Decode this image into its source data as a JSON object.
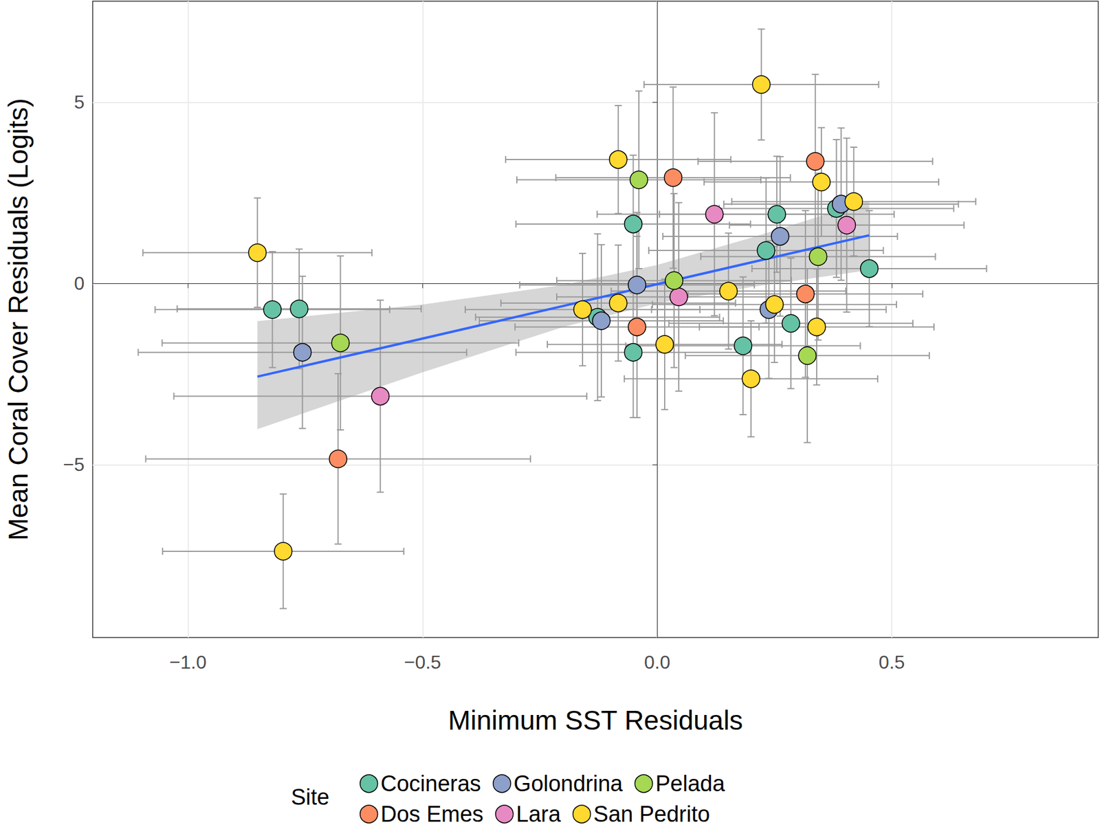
{
  "chart_data": {
    "type": "scatter",
    "x_label": "Minimum SST Residuals",
    "y_label": "Mean Coral Cover Residuals (Logits)",
    "legend_title": "Site",
    "legend": "bottom",
    "grid": true,
    "xlim": [
      -1.203,
      0.94
    ],
    "ylim": [
      -9.77,
      7.79
    ],
    "xticks": [
      {
        "value": -1,
        "label": "−1.0"
      },
      {
        "value": -0.5,
        "label": "−0.5"
      },
      {
        "value": 0,
        "label": "0.0"
      },
      {
        "value": 0.5,
        "label": "0.5"
      }
    ],
    "yticks": [
      {
        "value": -5,
        "label": "−5"
      },
      0,
      5
    ],
    "series": [
      {
        "name": "Cocineras",
        "color": "#66c2a5",
        "x": [
          -0.82,
          -0.763,
          -0.051,
          -0.051,
          -0.127,
          0.232,
          0.255,
          0.285,
          0.183,
          0.382,
          0.452
        ],
        "values": [
          -0.72,
          -0.7,
          1.64,
          -1.9,
          -0.93,
          0.91,
          1.91,
          -1.1,
          -1.72,
          2.07,
          0.41
        ],
        "x_err": [
          0.25,
          0.26,
          0.25,
          0.25,
          0.26,
          0.25,
          0.25,
          0.26,
          0.25,
          0.25,
          0.25
        ],
        "y_err": [
          1.6,
          1.65,
          1.9,
          1.8,
          2.3,
          2.0,
          1.6,
          1.8,
          1.9,
          1.9,
          1.6
        ]
      },
      {
        "name": "Dos Emes",
        "color": "#fc8d62",
        "x": [
          -0.68,
          0.034,
          -0.043,
          0.337,
          0.316
        ],
        "values": [
          -4.84,
          2.92,
          -1.2,
          3.37,
          -0.29
        ],
        "x_err": [
          0.41,
          0.25,
          0.26,
          0.25,
          0.25
        ],
        "y_err": [
          2.35,
          2.5,
          2.5,
          2.4,
          2.3
        ]
      },
      {
        "name": "Golondrina",
        "color": "#8da0cb",
        "x": [
          -0.756,
          -0.119,
          -0.043,
          0.262,
          0.238,
          0.392
        ],
        "values": [
          -1.9,
          -1.03,
          -0.04,
          1.3,
          -0.72,
          2.19
        ],
        "x_err": [
          0.35,
          0.26,
          0.25,
          0.25,
          0.25,
          0.25
        ],
        "y_err": [
          2.1,
          2.1,
          2.0,
          2.2,
          1.9,
          2.1
        ]
      },
      {
        "name": "Lara",
        "color": "#e78ac3",
        "x": [
          -0.59,
          0.122,
          0.046,
          0.404
        ],
        "values": [
          -3.11,
          1.91,
          -0.37,
          1.61
        ],
        "x_err": [
          0.44,
          0.25,
          0.26,
          0.25
        ],
        "y_err": [
          2.65,
          2.8,
          2.6,
          2.4
        ]
      },
      {
        "name": "Pelada",
        "color": "#a6d854",
        "x": [
          -0.675,
          -0.039,
          0.036,
          0.343,
          0.32
        ],
        "values": [
          -1.64,
          2.86,
          0.08,
          0.74,
          -1.99
        ],
        "x_err": [
          0.38,
          0.26,
          0.25,
          0.25,
          0.26
        ],
        "y_err": [
          2.4,
          2.45,
          2.4,
          2.3,
          2.4
        ]
      },
      {
        "name": "San Pedrito",
        "color": "#ffd92f",
        "x": [
          -0.852,
          -0.797,
          -0.083,
          0.222,
          0.35,
          0.419,
          -0.159,
          -0.083,
          0.016,
          0.152,
          0.2,
          0.25,
          0.34
        ],
        "values": [
          0.85,
          -7.39,
          3.42,
          5.49,
          2.8,
          2.26,
          -0.72,
          -0.54,
          -1.68,
          -0.21,
          -2.63,
          -0.58,
          -1.2
        ],
        "x_err": [
          0.244,
          0.257,
          0.24,
          0.25,
          0.25,
          0.26,
          0.25,
          0.25,
          0.25,
          0.25,
          0.27,
          0.26,
          0.25
        ],
        "y_err": [
          1.51,
          1.58,
          1.49,
          1.53,
          1.5,
          1.5,
          1.55,
          1.6,
          1.8,
          1.6,
          1.6,
          1.6,
          1.6
        ]
      }
    ],
    "fit": {
      "color": "#3366ff",
      "x": [
        -0.852,
        -0.5,
        -0.2,
        0,
        0.2,
        0.452
      ],
      "values": [
        -2.57,
        -1.52,
        -0.62,
        -0.02,
        0.58,
        1.33
      ],
      "lower": [
        -4.02,
        -2.45,
        -1.2,
        -0.55,
        -0.1,
        0.37
      ],
      "upper": [
        -1.04,
        -0.58,
        -0.04,
        0.51,
        1.26,
        2.28
      ]
    }
  }
}
